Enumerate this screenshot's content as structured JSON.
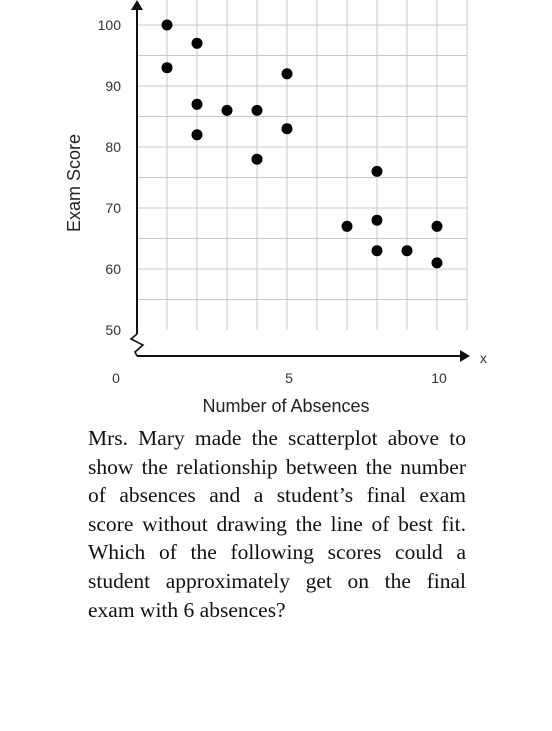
{
  "chart_data": {
    "type": "scatter",
    "title": "",
    "xlabel": "Number of Absences",
    "ylabel": "Exam Score",
    "x_axis_arrow_label": "x",
    "xlim": [
      0,
      11
    ],
    "ylim": [
      50,
      100
    ],
    "x_ticks": [
      0,
      5,
      10
    ],
    "y_ticks": [
      50,
      60,
      70,
      80,
      90,
      100
    ],
    "x_tick_labels": [
      "0",
      "5",
      "10"
    ],
    "y_tick_labels": [
      "50",
      "60",
      "70",
      "80",
      "90",
      "100"
    ],
    "grid": true,
    "axis_break": true,
    "points": [
      {
        "x": 1,
        "y": 100
      },
      {
        "x": 1,
        "y": 93
      },
      {
        "x": 2,
        "y": 97
      },
      {
        "x": 2,
        "y": 87
      },
      {
        "x": 2,
        "y": 82
      },
      {
        "x": 3,
        "y": 86
      },
      {
        "x": 4,
        "y": 86
      },
      {
        "x": 4,
        "y": 78
      },
      {
        "x": 5,
        "y": 92
      },
      {
        "x": 5,
        "y": 83
      },
      {
        "x": 7,
        "y": 67
      },
      {
        "x": 8,
        "y": 76
      },
      {
        "x": 8,
        "y": 68
      },
      {
        "x": 8,
        "y": 63
      },
      {
        "x": 9,
        "y": 63
      },
      {
        "x": 10,
        "y": 67
      },
      {
        "x": 10,
        "y": 61
      }
    ]
  },
  "question": {
    "text": "Mrs. Mary made the scatterplot above to show the relationship between the number of absences and a student’s final exam score without drawing the line of best fit. Which of the following scores could a student approximately get on the final exam with 6 absences?"
  },
  "colors": {
    "grid": "#c8c8c8",
    "axis": "#111111",
    "point": "#000000"
  }
}
